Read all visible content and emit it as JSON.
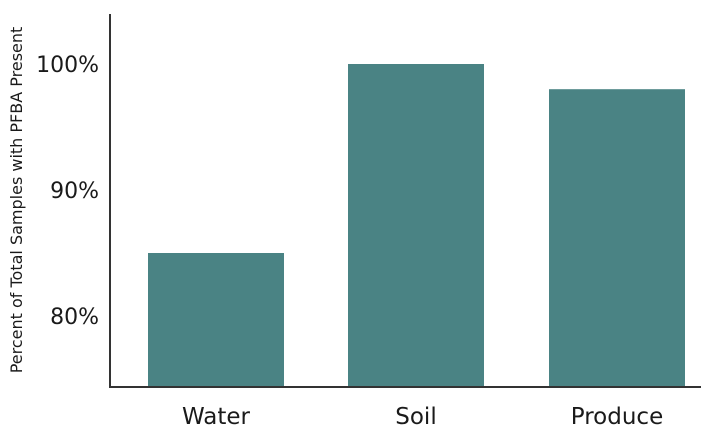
{
  "chart_data": {
    "type": "bar",
    "title": "",
    "xlabel": "",
    "ylabel": "Percent of Total Samples with PFBA Present",
    "categories": [
      "Water",
      "Soil",
      "Produce"
    ],
    "values": [
      85,
      100,
      98
    ],
    "ylim": [
      75,
      104
    ],
    "yticks": [
      80,
      90,
      100
    ],
    "ytick_labels": [
      "80%",
      "90%",
      "100%"
    ],
    "bar_color": "#4a8384",
    "axis_color": "#333333",
    "grid": false
  }
}
